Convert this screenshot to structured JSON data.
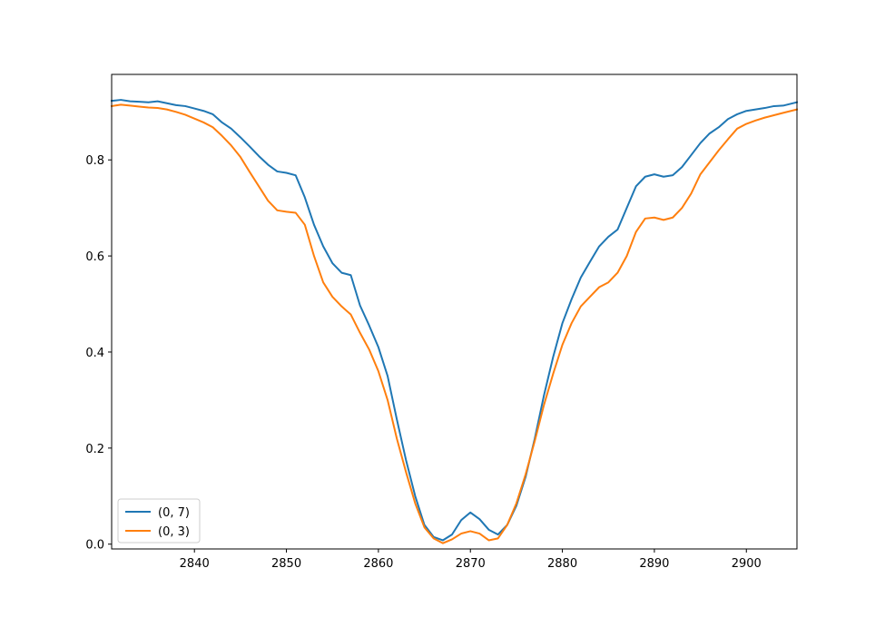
{
  "chart_data": {
    "type": "line",
    "title": "",
    "xlabel": "",
    "ylabel": "",
    "xlim": [
      2831,
      2905.5
    ],
    "ylim": [
      -0.01,
      0.978
    ],
    "xticks": [
      2840,
      2850,
      2860,
      2870,
      2880,
      2890,
      2900
    ],
    "yticks": [
      0.0,
      0.2,
      0.4,
      0.6,
      0.8
    ],
    "grid": false,
    "legend_position": "lower-left",
    "series": [
      {
        "name": "(0, 7)",
        "color": "#1f77b4",
        "x": [
          2831,
          2832,
          2833,
          2834,
          2835,
          2836,
          2837,
          2838,
          2839,
          2840,
          2841,
          2842,
          2843,
          2844,
          2845,
          2846,
          2847,
          2848,
          2849,
          2850,
          2851,
          2852,
          2853,
          2854,
          2855,
          2856,
          2857,
          2858,
          2859,
          2860,
          2861,
          2862,
          2863,
          2864,
          2865,
          2866,
          2867,
          2868,
          2869,
          2870,
          2871,
          2872,
          2873,
          2874,
          2875,
          2876,
          2877,
          2878,
          2879,
          2880,
          2881,
          2882,
          2883,
          2884,
          2885,
          2886,
          2887,
          2888,
          2889,
          2890,
          2891,
          2892,
          2893,
          2894,
          2895,
          2896,
          2897,
          2898,
          2899,
          2900,
          2901,
          2902,
          2903,
          2904,
          2905.5
        ],
        "values": [
          0.923,
          0.925,
          0.922,
          0.921,
          0.92,
          0.922,
          0.918,
          0.914,
          0.912,
          0.907,
          0.902,
          0.895,
          0.878,
          0.865,
          0.847,
          0.828,
          0.808,
          0.79,
          0.776,
          0.773,
          0.768,
          0.722,
          0.665,
          0.62,
          0.585,
          0.565,
          0.56,
          0.497,
          0.455,
          0.41,
          0.35,
          0.26,
          0.175,
          0.1,
          0.04,
          0.015,
          0.008,
          0.02,
          0.05,
          0.066,
          0.052,
          0.03,
          0.02,
          0.04,
          0.08,
          0.14,
          0.22,
          0.31,
          0.39,
          0.46,
          0.51,
          0.555,
          0.588,
          0.62,
          0.64,
          0.655,
          0.7,
          0.745,
          0.765,
          0.77,
          0.765,
          0.768,
          0.785,
          0.81,
          0.835,
          0.855,
          0.868,
          0.885,
          0.895,
          0.902,
          0.905,
          0.908,
          0.912,
          0.913,
          0.92
        ]
      },
      {
        "name": "(0, 3)",
        "color": "#ff7f0e",
        "x": [
          2831,
          2832,
          2833,
          2834,
          2835,
          2836,
          2837,
          2838,
          2839,
          2840,
          2841,
          2842,
          2843,
          2844,
          2845,
          2846,
          2847,
          2848,
          2849,
          2850,
          2851,
          2852,
          2853,
          2854,
          2855,
          2856,
          2857,
          2858,
          2859,
          2860,
          2861,
          2862,
          2863,
          2864,
          2865,
          2866,
          2867,
          2868,
          2869,
          2870,
          2871,
          2872,
          2873,
          2874,
          2875,
          2876,
          2877,
          2878,
          2879,
          2880,
          2881,
          2882,
          2883,
          2884,
          2885,
          2886,
          2887,
          2888,
          2889,
          2890,
          2891,
          2892,
          2893,
          2894,
          2895,
          2896,
          2897,
          2898,
          2899,
          2900,
          2901,
          2902,
          2903,
          2904,
          2905.5
        ],
        "values": [
          0.912,
          0.915,
          0.913,
          0.911,
          0.909,
          0.908,
          0.905,
          0.9,
          0.894,
          0.886,
          0.878,
          0.868,
          0.85,
          0.83,
          0.806,
          0.775,
          0.745,
          0.715,
          0.695,
          0.692,
          0.69,
          0.665,
          0.6,
          0.545,
          0.515,
          0.495,
          0.478,
          0.44,
          0.405,
          0.36,
          0.3,
          0.22,
          0.15,
          0.085,
          0.035,
          0.012,
          0.002,
          0.01,
          0.022,
          0.027,
          0.022,
          0.008,
          0.012,
          0.04,
          0.085,
          0.145,
          0.215,
          0.29,
          0.355,
          0.415,
          0.46,
          0.495,
          0.515,
          0.535,
          0.545,
          0.565,
          0.6,
          0.65,
          0.678,
          0.68,
          0.675,
          0.68,
          0.7,
          0.73,
          0.77,
          0.795,
          0.82,
          0.843,
          0.865,
          0.875,
          0.882,
          0.888,
          0.893,
          0.898,
          0.905
        ]
      }
    ]
  }
}
